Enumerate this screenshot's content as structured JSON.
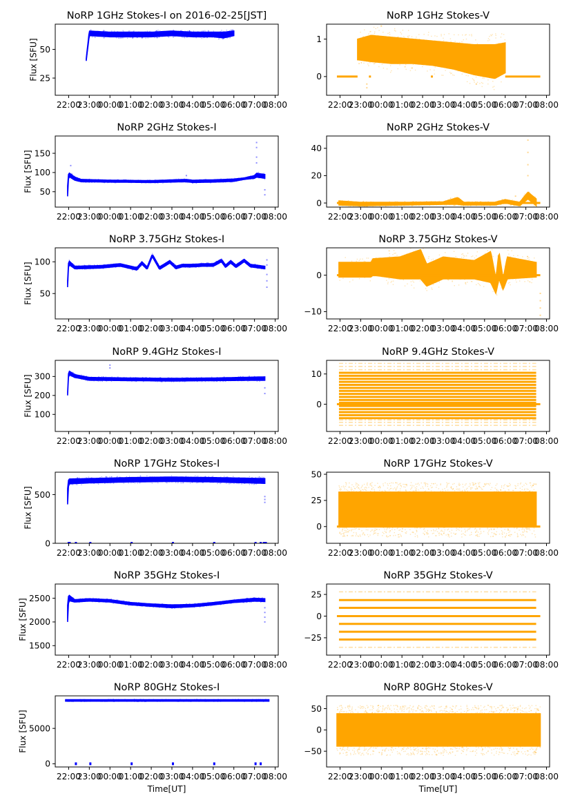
{
  "figure": {
    "shared_xlabel": "Time[UT]",
    "x_tick_labels": [
      "22:00",
      "23:00",
      "00:00",
      "01:00",
      "02:00",
      "03:00",
      "04:00",
      "05:00",
      "06:00",
      "07:00",
      "08:00"
    ],
    "x_range_hours": [
      21.35,
      32.15
    ],
    "colors": {
      "stokes_i": "#0000ff",
      "stokes_v": "#ffa500"
    }
  },
  "chart_data": [
    {
      "type": "scatter",
      "title": "NoRP 1GHz Stokes-I on 2016-02-25[JST]",
      "ylabel": "Flux [SFU]",
      "xlabel": "",
      "column": "left",
      "series_color": "stokes_i",
      "ylim": [
        10,
        72
      ],
      "yticks": [
        25,
        50
      ],
      "x_tick_labels": [
        "22:00",
        "23:00",
        "00:00",
        "01:00",
        "02:00",
        "03:00",
        "04:00",
        "05:00",
        "06:00",
        "07:00",
        "08:00"
      ],
      "band": [
        [
          22.85,
          40,
          42
        ],
        [
          23.0,
          62,
          66
        ],
        [
          24,
          61,
          65
        ],
        [
          25,
          61,
          65
        ],
        [
          26,
          61,
          65
        ],
        [
          27,
          62,
          66
        ],
        [
          28,
          61,
          65
        ],
        [
          29,
          61,
          65
        ],
        [
          29.5,
          60,
          65
        ],
        [
          30.0,
          62,
          66
        ]
      ],
      "outliers": []
    },
    {
      "type": "scatter",
      "title": "NoRP 1GHz Stokes-V",
      "ylabel": "",
      "xlabel": "",
      "column": "right",
      "series_color": "stokes_v",
      "ylim": [
        -0.5,
        1.4
      ],
      "yticks": [
        0,
        1
      ],
      "x_tick_labels": [
        "22:00",
        "23:00",
        "00:00",
        "01:00",
        "02:00",
        "03:00",
        "04:00",
        "05:00",
        "06:00",
        "07:00",
        "08:00"
      ],
      "flat_segments": [
        [
          21.85,
          22.85,
          0
        ],
        [
          23.4,
          23.5,
          0
        ],
        [
          26.4,
          26.5,
          0
        ],
        [
          30.0,
          31.7,
          0
        ]
      ],
      "band": [
        [
          22.85,
          0.45,
          1.0
        ],
        [
          23.5,
          0.4,
          1.1
        ],
        [
          24.5,
          0.35,
          1.05
        ],
        [
          25.5,
          0.35,
          1.0
        ],
        [
          26.5,
          0.3,
          0.95
        ],
        [
          27.5,
          0.2,
          0.9
        ],
        [
          28.5,
          0.05,
          0.85
        ],
        [
          29.5,
          -0.05,
          0.85
        ],
        [
          30.0,
          0.1,
          0.9
        ]
      ],
      "outliers": [
        [
          23.3,
          -0.3
        ],
        [
          23.3,
          -0.2
        ],
        [
          24.0,
          1.35
        ],
        [
          28.6,
          -0.2
        ]
      ]
    },
    {
      "type": "scatter",
      "title": "NoRP 2GHz Stokes-I",
      "ylabel": "Flux [SFU]",
      "xlabel": "",
      "column": "left",
      "series_color": "stokes_i",
      "ylim": [
        10,
        195
      ],
      "yticks": [
        50,
        100,
        150
      ],
      "x_tick_labels": [
        "22:00",
        "23:00",
        "00:00",
        "01:00",
        "02:00",
        "03:00",
        "04:00",
        "05:00",
        "06:00",
        "07:00",
        "08:00"
      ],
      "band": [
        [
          21.95,
          38,
          65
        ],
        [
          22.0,
          90,
          100
        ],
        [
          22.3,
          80,
          88
        ],
        [
          22.6,
          76,
          82
        ],
        [
          24,
          75,
          80
        ],
        [
          26,
          74,
          79
        ],
        [
          27.7,
          76,
          82
        ],
        [
          28.0,
          74,
          80
        ],
        [
          29.0,
          75,
          81
        ],
        [
          30.0,
          77,
          83
        ],
        [
          30.5,
          82,
          86
        ],
        [
          31.0,
          85,
          92
        ],
        [
          31.1,
          88,
          98
        ],
        [
          31.5,
          85,
          95
        ]
      ],
      "outliers": [
        [
          22.1,
          118
        ],
        [
          27.7,
          92
        ],
        [
          31.1,
          178
        ],
        [
          31.1,
          165
        ],
        [
          31.1,
          140
        ],
        [
          31.1,
          125
        ],
        [
          31.5,
          42
        ],
        [
          31.5,
          55
        ]
      ]
    },
    {
      "type": "scatter",
      "title": "NoRP 2GHz Stokes-V",
      "ylabel": "",
      "xlabel": "",
      "column": "right",
      "series_color": "stokes_v",
      "ylim": [
        -3,
        49
      ],
      "yticks": [
        0,
        20,
        40
      ],
      "x_tick_labels": [
        "22:00",
        "23:00",
        "00:00",
        "01:00",
        "02:00",
        "03:00",
        "04:00",
        "05:00",
        "06:00",
        "07:00",
        "08:00"
      ],
      "flat_segments": [
        [
          21.85,
          31.7,
          0
        ]
      ],
      "band": [
        [
          21.95,
          -1.5,
          1.5
        ],
        [
          23,
          -2,
          0.5
        ],
        [
          25,
          -1.5,
          0.5
        ],
        [
          27,
          -1,
          0.8
        ],
        [
          27.7,
          -1,
          4
        ],
        [
          28.0,
          -1.5,
          0.5
        ],
        [
          29.5,
          -1.5,
          0.5
        ],
        [
          30.0,
          0,
          2.5
        ],
        [
          30.7,
          -2,
          0.5
        ],
        [
          31.1,
          3,
          8
        ],
        [
          31.5,
          -2,
          3
        ]
      ],
      "outliers": [
        [
          31.1,
          46
        ],
        [
          31.1,
          37
        ],
        [
          31.1,
          28
        ],
        [
          31.1,
          20
        ],
        [
          30.5,
          5
        ]
      ]
    },
    {
      "type": "scatter",
      "title": "NoRP 3.75GHz Stokes-I",
      "ylabel": "Flux [SFU]",
      "xlabel": "",
      "column": "left",
      "series_color": "stokes_i",
      "ylim": [
        10,
        122
      ],
      "yticks": [
        50,
        100
      ],
      "x_tick_labels": [
        "22:00",
        "23:00",
        "00:00",
        "01:00",
        "02:00",
        "03:00",
        "04:00",
        "05:00",
        "06:00",
        "07:00",
        "08:00"
      ],
      "band": [
        [
          21.95,
          60,
          70
        ],
        [
          22.0,
          96,
          102
        ],
        [
          22.3,
          89,
          93
        ],
        [
          23.5,
          90,
          94
        ],
        [
          24.5,
          93,
          97
        ],
        [
          25.3,
          87,
          91
        ],
        [
          25.55,
          96,
          100
        ],
        [
          25.8,
          88,
          92
        ],
        [
          26.05,
          108,
          112
        ],
        [
          26.4,
          88,
          92
        ],
        [
          26.9,
          98,
          102
        ],
        [
          27.2,
          89,
          93
        ],
        [
          27.5,
          92,
          96
        ],
        [
          28.0,
          92,
          96
        ],
        [
          28.5,
          93,
          97
        ],
        [
          29.0,
          93,
          97
        ],
        [
          29.4,
          100,
          104
        ],
        [
          29.6,
          91,
          95
        ],
        [
          29.85,
          98,
          102
        ],
        [
          30.1,
          91,
          95
        ],
        [
          30.5,
          100,
          104
        ],
        [
          30.8,
          92,
          96
        ],
        [
          31.5,
          89,
          93
        ]
      ],
      "outliers": [
        [
          31.6,
          60
        ],
        [
          31.6,
          70
        ],
        [
          31.6,
          80
        ],
        [
          31.6,
          95
        ],
        [
          31.6,
          103
        ]
      ]
    },
    {
      "type": "scatter",
      "title": "NoRP 3.75GHz Stokes-V",
      "ylabel": "",
      "xlabel": "",
      "column": "right",
      "series_color": "stokes_v",
      "ylim": [
        -12,
        7.5
      ],
      "yticks": [
        -10,
        0
      ],
      "x_tick_labels": [
        "22:00",
        "23:00",
        "00:00",
        "01:00",
        "02:00",
        "03:00",
        "04:00",
        "05:00",
        "06:00",
        "07:00",
        "08:00"
      ],
      "flat_segments": [
        [
          21.85,
          31.7,
          0
        ]
      ],
      "band": [
        [
          21.95,
          -0.5,
          3.5
        ],
        [
          23.5,
          -0.5,
          3.5
        ],
        [
          23.6,
          0,
          4.5
        ],
        [
          24.9,
          -1,
          5
        ],
        [
          25.9,
          -1,
          7
        ],
        [
          26.2,
          -3,
          3
        ],
        [
          27.0,
          -1,
          5
        ],
        [
          28.5,
          -1,
          4
        ],
        [
          29.3,
          -2,
          6.5
        ],
        [
          29.55,
          -5,
          -1
        ],
        [
          29.7,
          -1,
          6.5
        ],
        [
          29.9,
          -4,
          -1
        ],
        [
          30.1,
          -1,
          5
        ],
        [
          31.5,
          -0.5,
          3.5
        ]
      ],
      "outliers": [
        [
          31.7,
          -5
        ],
        [
          31.7,
          -7
        ],
        [
          31.7,
          -9
        ],
        [
          31.7,
          -11
        ]
      ]
    },
    {
      "type": "scatter",
      "title": "NoRP 9.4GHz Stokes-I",
      "ylabel": "Flux [SFU]",
      "xlabel": "",
      "column": "left",
      "series_color": "stokes_i",
      "ylim": [
        10,
        385
      ],
      "yticks": [
        100,
        200,
        300
      ],
      "x_tick_labels": [
        "22:00",
        "23:00",
        "00:00",
        "01:00",
        "02:00",
        "03:00",
        "04:00",
        "05:00",
        "06:00",
        "07:00",
        "08:00"
      ],
      "band": [
        [
          21.95,
          200,
          215
        ],
        [
          22.0,
          310,
          330
        ],
        [
          22.3,
          295,
          310
        ],
        [
          23.0,
          280,
          295
        ],
        [
          25,
          278,
          292
        ],
        [
          27,
          276,
          290
        ],
        [
          29,
          278,
          292
        ],
        [
          31.5,
          280,
          298
        ]
      ],
      "outliers": [
        [
          24.0,
          360
        ],
        [
          24.0,
          345
        ],
        [
          31.5,
          210
        ],
        [
          31.5,
          240
        ]
      ]
    },
    {
      "type": "scatter",
      "title": "NoRP 9.4GHz Stokes-V",
      "ylabel": "",
      "xlabel": "",
      "column": "right",
      "series_color": "stokes_v",
      "ylim": [
        -9,
        14.5
      ],
      "yticks": [
        0,
        10
      ],
      "x_tick_labels": [
        "22:00",
        "23:00",
        "00:00",
        "01:00",
        "02:00",
        "03:00",
        "04:00",
        "05:00",
        "06:00",
        "07:00",
        "08:00"
      ],
      "flat_segments": [
        [
          21.85,
          31.7,
          0
        ]
      ],
      "level_lines": [
        -4.6,
        -3.6,
        -2.6,
        -1.6,
        -0.6,
        0.5,
        1.4,
        2.4,
        3.4,
        4.4,
        5.4,
        6.4,
        7.4,
        8.4,
        9.4,
        10.4
      ],
      "sparse_levels": [
        -7,
        -6,
        -5.2,
        11.4,
        12.5,
        13.5
      ],
      "band": [],
      "outliers": []
    },
    {
      "type": "scatter",
      "title": "NoRP 17GHz Stokes-I",
      "ylabel": "Flux [SFU]",
      "xlabel": "",
      "column": "left",
      "series_color": "stokes_i",
      "ylim": [
        0,
        730
      ],
      "yticks": [
        0,
        500
      ],
      "x_tick_labels": [
        "22:00",
        "23:00",
        "00:00",
        "01:00",
        "02:00",
        "03:00",
        "04:00",
        "05:00",
        "06:00",
        "07:00",
        "08:00"
      ],
      "band": [
        [
          21.95,
          400,
          560
        ],
        [
          22.0,
          610,
          660
        ],
        [
          23,
          620,
          665
        ],
        [
          25,
          630,
          675
        ],
        [
          27,
          635,
          680
        ],
        [
          29,
          630,
          675
        ],
        [
          31.5,
          615,
          665
        ]
      ],
      "zero_points": [
        [
          21.95,
          22.1
        ],
        [
          22.3,
          22.4
        ],
        [
          23.0,
          23.05
        ],
        [
          25.0,
          25.05
        ],
        [
          27.0,
          27.05
        ],
        [
          29.0,
          29.05
        ],
        [
          31.0,
          31.1
        ],
        [
          31.25,
          31.35
        ],
        [
          31.4,
          31.6
        ]
      ],
      "outliers": [
        [
          31.5,
          420
        ],
        [
          31.5,
          450
        ],
        [
          31.5,
          480
        ]
      ]
    },
    {
      "type": "scatter",
      "title": "NoRP 17GHz Stokes-V",
      "ylabel": "",
      "xlabel": "",
      "column": "right",
      "series_color": "stokes_v",
      "ylim": [
        -16,
        52
      ],
      "yticks": [
        0,
        25,
        50
      ],
      "x_tick_labels": [
        "22:00",
        "23:00",
        "00:00",
        "01:00",
        "02:00",
        "03:00",
        "04:00",
        "05:00",
        "06:00",
        "07:00",
        "08:00"
      ],
      "flat_segments": [
        [
          21.85,
          31.7,
          0
        ]
      ],
      "band": [
        [
          21.95,
          0,
          33
        ],
        [
          31.5,
          0,
          33
        ]
      ],
      "noise_halo": [
        -10,
        42
      ],
      "outliers": []
    },
    {
      "type": "scatter",
      "title": "NoRP 35GHz Stokes-I",
      "ylabel": "Flux [SFU]",
      "xlabel": "",
      "column": "left",
      "series_color": "stokes_i",
      "ylim": [
        1300,
        2800
      ],
      "yticks": [
        1500,
        2000,
        2500
      ],
      "x_tick_labels": [
        "22:00",
        "23:00",
        "00:00",
        "01:00",
        "02:00",
        "03:00",
        "04:00",
        "05:00",
        "06:00",
        "07:00",
        "08:00"
      ],
      "band": [
        [
          21.95,
          2000,
          2350
        ],
        [
          22.0,
          2450,
          2570
        ],
        [
          22.3,
          2420,
          2470
        ],
        [
          23.0,
          2440,
          2490
        ],
        [
          24.0,
          2420,
          2470
        ],
        [
          25.0,
          2360,
          2410
        ],
        [
          26.0,
          2330,
          2380
        ],
        [
          27.0,
          2300,
          2360
        ],
        [
          28.0,
          2320,
          2370
        ],
        [
          29.0,
          2360,
          2410
        ],
        [
          30.0,
          2410,
          2460
        ],
        [
          31.0,
          2440,
          2500
        ],
        [
          31.5,
          2430,
          2490
        ]
      ],
      "outliers": [
        [
          31.5,
          2000
        ],
        [
          31.5,
          2100
        ],
        [
          31.5,
          2200
        ],
        [
          31.5,
          2300
        ]
      ]
    },
    {
      "type": "scatter",
      "title": "NoRP 35GHz Stokes-V",
      "ylabel": "",
      "xlabel": "",
      "column": "right",
      "series_color": "stokes_v",
      "ylim": [
        -45,
        37
      ],
      "yticks": [
        -25,
        0,
        25
      ],
      "x_tick_labels": [
        "22:00",
        "23:00",
        "00:00",
        "01:00",
        "02:00",
        "03:00",
        "04:00",
        "05:00",
        "06:00",
        "07:00",
        "08:00"
      ],
      "flat_segments": [
        [
          21.85,
          31.7,
          0
        ]
      ],
      "level_lines": [
        -27,
        -18,
        -9,
        0,
        9.5,
        18.5
      ],
      "sparse_levels": [
        -36,
        28
      ],
      "band": [],
      "outliers": []
    },
    {
      "type": "scatter",
      "title": "NoRP 80GHz Stokes-I",
      "ylabel": "Flux [SFU]",
      "xlabel": "Time[UT]",
      "column": "left",
      "series_color": "stokes_i",
      "ylim": [
        -450,
        9600
      ],
      "yticks": [
        0,
        5000
      ],
      "x_tick_labels": [
        "22:00",
        "23:00",
        "00:00",
        "01:00",
        "02:00",
        "03:00",
        "04:00",
        "05:00",
        "06:00",
        "07:00",
        "08:00"
      ],
      "band": [
        [
          21.85,
          8850,
          9050
        ],
        [
          31.7,
          8850,
          9050
        ]
      ],
      "zero_points": [
        [
          22.3,
          22.4
        ],
        [
          23.0,
          23.1
        ],
        [
          25.0,
          25.1
        ],
        [
          27.0,
          27.1
        ],
        [
          29.0,
          29.1
        ],
        [
          31.0,
          31.1
        ],
        [
          31.25,
          31.35
        ]
      ],
      "outliers": []
    },
    {
      "type": "scatter",
      "title": "NoRP 80GHz Stokes-V",
      "ylabel": "",
      "xlabel": "Time[UT]",
      "column": "right",
      "series_color": "stokes_v",
      "ylim": [
        -87,
        80
      ],
      "yticks": [
        -50,
        0,
        50
      ],
      "x_tick_labels": [
        "22:00",
        "23:00",
        "00:00",
        "01:00",
        "02:00",
        "03:00",
        "04:00",
        "05:00",
        "06:00",
        "07:00",
        "08:00"
      ],
      "band": [
        [
          21.85,
          -38,
          38
        ],
        [
          31.7,
          -38,
          38
        ]
      ],
      "noise_halo": [
        -60,
        58
      ],
      "outliers": []
    }
  ]
}
